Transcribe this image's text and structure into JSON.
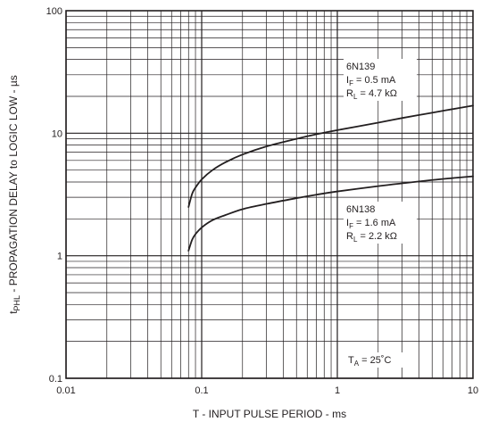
{
  "chart_data": {
    "type": "line",
    "title": "",
    "xlabel": "T - INPUT PULSE PERIOD - ms",
    "ylabel": {
      "prefix": "t",
      "sub": "PHL",
      "rest": " - PROPAGATION DELAY to LOGIC LOW - µs"
    },
    "x_scale": "log",
    "y_scale": "log",
    "xlim": [
      0.01,
      10
    ],
    "ylim": [
      0.1,
      100
    ],
    "grid": true,
    "x_ticks": [
      "0.01",
      "0.1",
      "1",
      "10"
    ],
    "y_ticks": [
      "0.1",
      "1",
      "10",
      "100"
    ],
    "series": [
      {
        "name": "6N139",
        "x": [
          0.08,
          0.085,
          0.09,
          0.1,
          0.12,
          0.15,
          0.2,
          0.3,
          0.5,
          0.7,
          1,
          2,
          3,
          5,
          7,
          10
        ],
        "y": [
          2.5,
          3.2,
          3.6,
          4.2,
          5.0,
          5.8,
          6.7,
          7.8,
          9.0,
          9.8,
          10.6,
          12.2,
          13.3,
          14.7,
          15.7,
          16.8
        ]
      },
      {
        "name": "6N138",
        "x": [
          0.08,
          0.085,
          0.09,
          0.1,
          0.12,
          0.15,
          0.2,
          0.3,
          0.5,
          0.7,
          1,
          2,
          3,
          5,
          7,
          10
        ],
        "y": [
          1.1,
          1.35,
          1.5,
          1.7,
          1.95,
          2.15,
          2.4,
          2.65,
          2.95,
          3.15,
          3.35,
          3.7,
          3.9,
          4.15,
          4.3,
          4.45
        ]
      }
    ],
    "annotations": [
      {
        "series": "6N139",
        "lines": [
          {
            "text": "6N139"
          },
          {
            "pre": "I",
            "sub": "F",
            "post": " = 0.5 mA"
          },
          {
            "pre": "R",
            "sub": "L",
            "post": " = 4.7 kΩ"
          }
        ]
      },
      {
        "series": "6N138",
        "lines": [
          {
            "text": "6N138"
          },
          {
            "pre": "I",
            "sub": "F",
            "post": " = 1.6 mA"
          },
          {
            "pre": "R",
            "sub": "L",
            "post": " = 2.2 kΩ"
          }
        ]
      },
      {
        "series": "",
        "lines": [
          {
            "pre": "T",
            "sub": "A",
            "post": " = 25˚C"
          }
        ]
      }
    ],
    "colors": {
      "line": "#231f20",
      "grid": "#231f20"
    }
  }
}
